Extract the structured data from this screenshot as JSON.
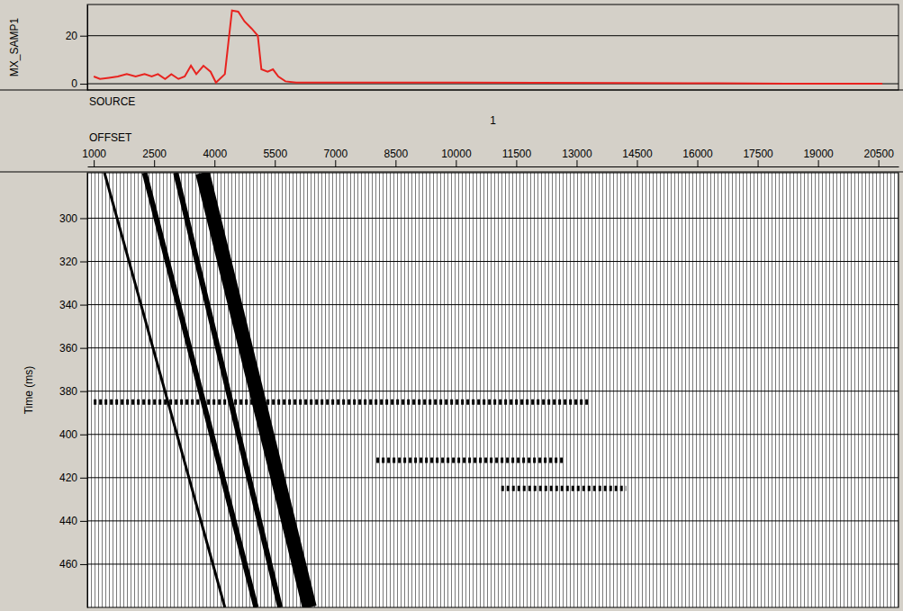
{
  "chart_data": [
    {
      "type": "line",
      "ylabel": "MX_SAMP1",
      "x": [
        1000,
        1155,
        1377,
        1598,
        1820,
        2041,
        2263,
        2440,
        2595,
        2773,
        2928,
        3105,
        3260,
        3415,
        3548,
        3726,
        3903,
        4036,
        4258,
        4435,
        4590,
        4745,
        4922,
        5077,
        5166,
        5321,
        5454,
        5587,
        5764,
        6030,
        7581,
        9797,
        12013,
        14230,
        16446,
        18218,
        20600
      ],
      "values": [
        3,
        2,
        2.5,
        3,
        4,
        3,
        4,
        3,
        4,
        2,
        4,
        2,
        3,
        7.5,
        4,
        7.5,
        5,
        0.5,
        4,
        30.5,
        30,
        26,
        23,
        20,
        6,
        5,
        6,
        3,
        1,
        0.5,
        0.5,
        0.5,
        0.4,
        0.3,
        0.2,
        0,
        0
      ],
      "color": "#e8231f",
      "xlim": [
        840,
        21000
      ],
      "ylim": [
        -2.6,
        33
      ],
      "yticks": [
        0,
        20
      ],
      "grid": true,
      "tick_labels": "y"
    },
    {
      "type": "line",
      "xlabel": "OFFSET",
      "ylabel": "Time (ms)",
      "annotations": [
        "SOURCE",
        "1"
      ],
      "xlim": [
        840,
        21000
      ],
      "xticks": [
        1000,
        2500,
        4000,
        5500,
        7000,
        8500,
        10000,
        11500,
        13000,
        14500,
        16000,
        17500,
        19000,
        20500
      ],
      "ylim": [
        480,
        279
      ],
      "yticks": [
        300,
        320,
        340,
        360,
        380,
        400,
        420,
        440,
        460
      ],
      "grid": true,
      "series": [
        {
          "color": "#000000",
          "line_style": "thick",
          "x": [
            3704,
            6363
          ],
          "values": [
            279,
            480
          ]
        },
        {
          "color": "#000000",
          "line_style": "solid",
          "x": [
            3039,
            5631
          ],
          "values": [
            279,
            480
          ]
        },
        {
          "color": "#000000",
          "line_style": "solid",
          "x": [
            2263,
            5033
          ],
          "values": [
            279,
            480
          ]
        },
        {
          "color": "#000000",
          "line_style": "thin",
          "x": [
            1266,
            4258
          ],
          "values": [
            279,
            480
          ]
        },
        {
          "color": "#000000",
          "line_style": "dashed",
          "x": [
            1000,
            13343
          ],
          "values": [
            385,
            385
          ]
        },
        {
          "color": "#000000",
          "line_style": "dashed",
          "x": [
            8025,
            12678
          ],
          "values": [
            412,
            412
          ]
        },
        {
          "color": "#000000",
          "line_style": "dashed",
          "x": [
            11127,
            14230
          ],
          "values": [
            425,
            425
          ]
        }
      ]
    }
  ]
}
